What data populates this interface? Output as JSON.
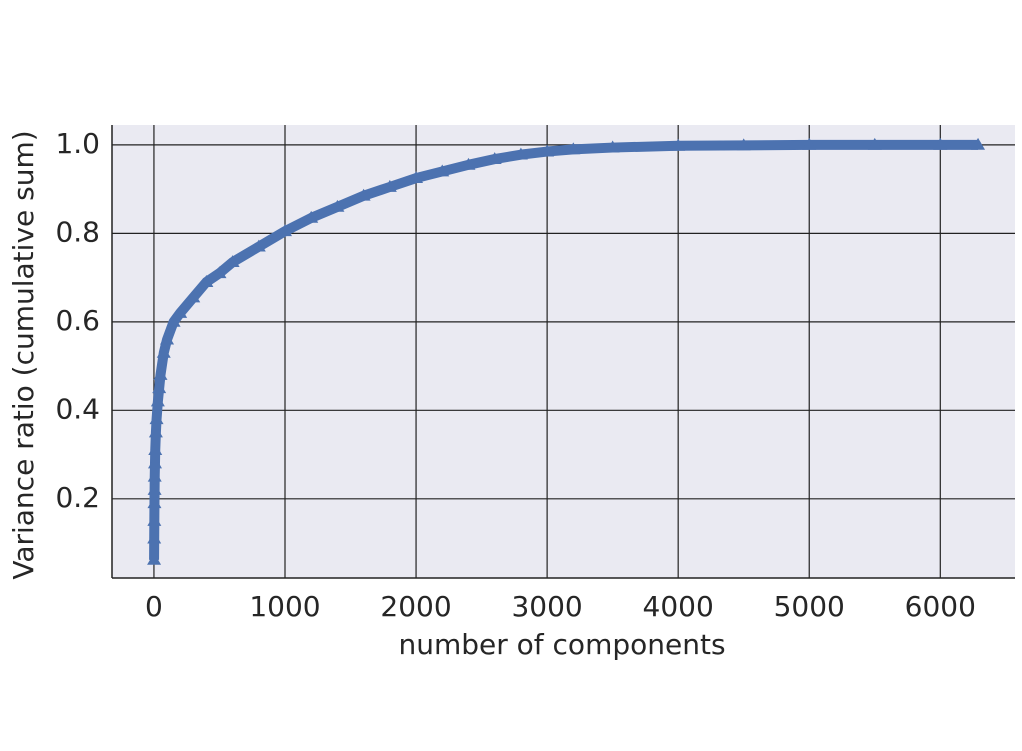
{
  "chart_data": {
    "type": "line",
    "xlabel": "number of components",
    "ylabel": "Variance ratio (cumulative sum)",
    "x": [
      1,
      2,
      3,
      4,
      5,
      6,
      8,
      10,
      15,
      20,
      30,
      40,
      50,
      75,
      100,
      150,
      200,
      300,
      400,
      500,
      600,
      800,
      1000,
      1200,
      1400,
      1600,
      1800,
      2000,
      2200,
      2400,
      2600,
      2800,
      3000,
      3200,
      3500,
      4000,
      4500,
      5000,
      5500,
      6000,
      6288
    ],
    "series": [
      {
        "color": "#4c72b0",
        "marker": "triangle",
        "values": [
          0.062,
          0.11,
          0.15,
          0.19,
          0.22,
          0.25,
          0.28,
          0.31,
          0.35,
          0.38,
          0.42,
          0.45,
          0.48,
          0.53,
          0.56,
          0.6,
          0.62,
          0.655,
          0.69,
          0.71,
          0.735,
          0.77,
          0.805,
          0.835,
          0.86,
          0.885,
          0.905,
          0.925,
          0.94,
          0.955,
          0.968,
          0.978,
          0.985,
          0.99,
          0.994,
          0.998,
          0.999,
          1,
          1,
          1,
          1
        ]
      }
    ],
    "xlim": [
      -320,
      6570
    ],
    "ylim": [
      0.021,
      1.045
    ],
    "xticks": [
      0,
      1000,
      2000,
      3000,
      4000,
      5000,
      6000
    ],
    "yticks": [
      0.2,
      0.4,
      0.6,
      0.8,
      {
        "value": 1,
        "label": "1.0"
      }
    ],
    "grid": true
  }
}
